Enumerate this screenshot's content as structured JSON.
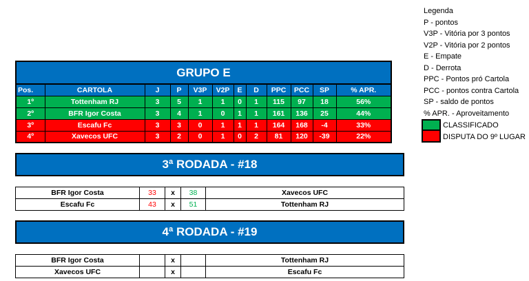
{
  "group": {
    "title": "GRUPO E",
    "headers": [
      "Pos.",
      "CARTOLA",
      "J",
      "P",
      "V3P",
      "V2P",
      "E",
      "D",
      "PPC",
      "PCC",
      "SP",
      "% APR."
    ],
    "rows": [
      [
        "1º",
        "Tottenham RJ",
        "3",
        "5",
        "1",
        "1",
        "0",
        "1",
        "115",
        "97",
        "18",
        "56%"
      ],
      [
        "2º",
        "BFR Igor Costa",
        "3",
        "4",
        "1",
        "0",
        "1",
        "1",
        "161",
        "136",
        "25",
        "44%"
      ],
      [
        "3º",
        "Escafu Fc",
        "3",
        "3",
        "0",
        "1",
        "1",
        "1",
        "164",
        "168",
        "-4",
        "33%"
      ],
      [
        "4º",
        "Xavecos UFC",
        "3",
        "2",
        "0",
        "1",
        "0",
        "2",
        "81",
        "120",
        "-39",
        "22%"
      ]
    ]
  },
  "round18": {
    "title": "3ª RODADA - #18",
    "matches": [
      {
        "home": "BFR Igor Costa",
        "home_score": "33",
        "sep": "x",
        "away_score": "38",
        "away": "Xavecos UFC"
      },
      {
        "home": "Escafu Fc",
        "home_score": "43",
        "sep": "x",
        "away_score": "51",
        "away": "Tottenham RJ"
      }
    ]
  },
  "round19": {
    "title": "4ª RODADA - #19",
    "matches": [
      {
        "home": "BFR Igor Costa",
        "home_score": "",
        "sep": "x",
        "away_score": "",
        "away": "Tottenham RJ"
      },
      {
        "home": "Xavecos UFC",
        "home_score": "",
        "sep": "x",
        "away_score": "",
        "away": "Escafu Fc"
      }
    ]
  },
  "legend": {
    "lines": [
      "Legenda",
      "P - pontos",
      "V3P - Vitória por 3 pontos",
      "V2P - Vitória por 2 pontos",
      "E - Empate",
      "D - Derrota",
      "PPC - Pontos pró Cartola",
      "PCC - pontos contra Cartola",
      "SP - saldo de pontos",
      "% APR. - Aproveitamento"
    ],
    "classified": "CLASSIFICADO",
    "dispute": "DISPUTA DO 9º LUGAR"
  },
  "colors": {
    "header": "#0070c0",
    "classified": "#00b050",
    "dispute": "#ff0000"
  }
}
